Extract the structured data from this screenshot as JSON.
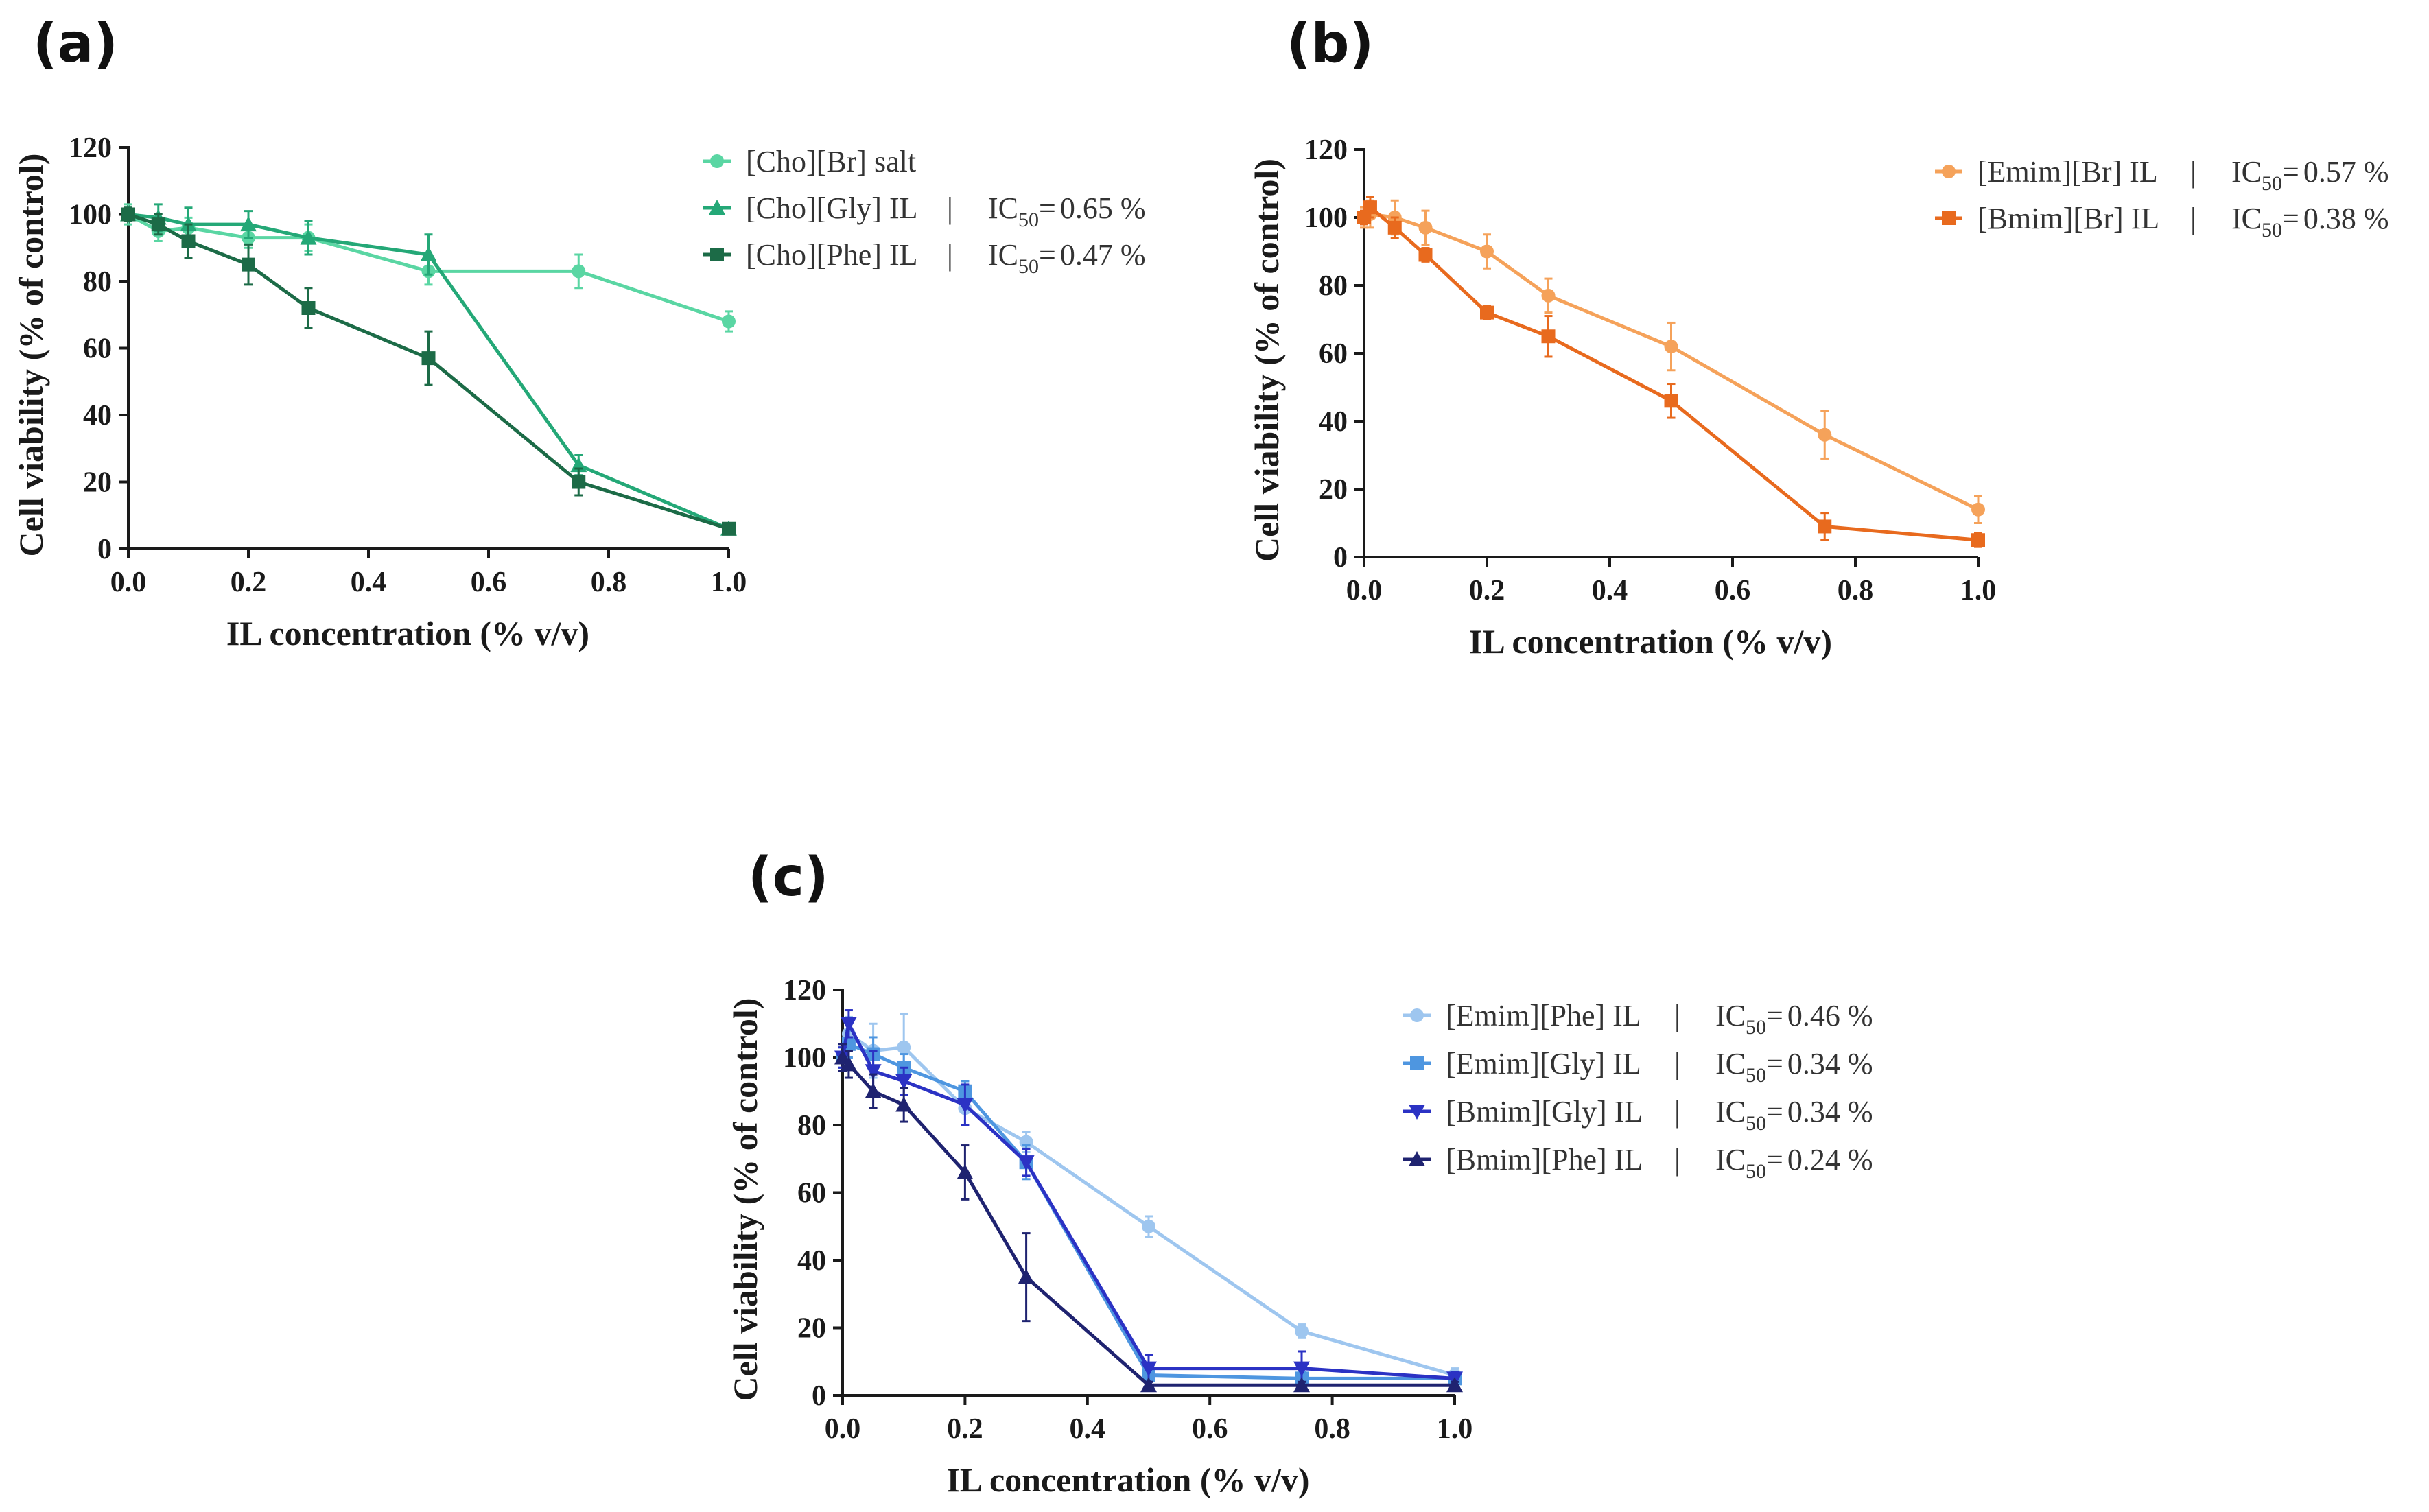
{
  "chart_data": [
    {
      "panel_label": "(a)",
      "type": "line",
      "xlabel": "IL concentration (% v/v)",
      "ylabel": "Cell viability (% of control)",
      "xlim": [
        0,
        1.0
      ],
      "ylim": [
        0,
        120
      ],
      "xticks": [
        "0.0",
        "0.2",
        "0.4",
        "0.6",
        "0.8",
        "1.0"
      ],
      "yticks": [
        "0",
        "20",
        "40",
        "60",
        "80",
        "100",
        "120"
      ],
      "legend_position": "top-right",
      "series": [
        {
          "name": "[Cho][Br] salt",
          "ic50": "",
          "color": "#5ad6a3",
          "marker": "circle",
          "x": [
            0,
            0.05,
            0.1,
            0.2,
            0.3,
            0.5,
            0.75,
            1.0
          ],
          "y": [
            100,
            95,
            96,
            93,
            93,
            83,
            83,
            68
          ],
          "err": [
            3,
            3,
            3,
            3,
            4,
            4,
            5,
            3
          ]
        },
        {
          "name": "[Cho][Gly] IL",
          "ic50": "0.65 %",
          "color": "#24a877",
          "marker": "triangle",
          "x": [
            0,
            0.05,
            0.1,
            0.2,
            0.3,
            0.5,
            0.75,
            1.0
          ],
          "y": [
            100,
            99,
            97,
            97,
            93,
            88,
            25,
            6
          ],
          "err": [
            2,
            4,
            5,
            4,
            5,
            6,
            3,
            1
          ]
        },
        {
          "name": "[Cho][Phe] IL",
          "ic50": "0.47 %",
          "color": "#1c6b47",
          "marker": "square",
          "x": [
            0,
            0.05,
            0.1,
            0.2,
            0.3,
            0.5,
            0.75,
            1.0
          ],
          "y": [
            100,
            97,
            92,
            85,
            72,
            57,
            20,
            6
          ],
          "err": [
            2,
            3,
            5,
            6,
            6,
            8,
            4,
            1
          ]
        }
      ]
    },
    {
      "panel_label": "(b)",
      "type": "line",
      "xlabel": "IL concentration (% v/v)",
      "ylabel": "Cell viability (% of control)",
      "xlim": [
        0,
        1.0
      ],
      "ylim": [
        0,
        120
      ],
      "xticks": [
        "0.0",
        "0.2",
        "0.4",
        "0.6",
        "0.8",
        "1.0"
      ],
      "yticks": [
        "0",
        "20",
        "40",
        "60",
        "80",
        "100",
        "120"
      ],
      "legend_position": "top-right",
      "series": [
        {
          "name": "[Emim][Br] IL",
          "ic50": "0.57 %",
          "color": "#f5a25a",
          "marker": "circle",
          "x": [
            0,
            0.01,
            0.05,
            0.1,
            0.2,
            0.3,
            0.5,
            0.75,
            1.0
          ],
          "y": [
            100,
            101,
            100,
            97,
            90,
            77,
            62,
            36,
            14
          ],
          "err": [
            3,
            4,
            5,
            5,
            5,
            5,
            7,
            7,
            4
          ]
        },
        {
          "name": "[Bmim][Br] IL",
          "ic50": "0.38 %",
          "color": "#e86a1e",
          "marker": "square",
          "x": [
            0,
            0.01,
            0.05,
            0.1,
            0.2,
            0.3,
            0.5,
            0.75,
            1.0
          ],
          "y": [
            100,
            103,
            97,
            89,
            72,
            65,
            46,
            9,
            5
          ],
          "err": [
            2,
            3,
            3,
            2,
            2,
            6,
            5,
            4,
            2
          ]
        }
      ]
    },
    {
      "panel_label": "(c)",
      "type": "line",
      "xlabel": "IL concentration (% v/v)",
      "ylabel": "Cell viability (% of control)",
      "xlim": [
        0,
        1.0
      ],
      "ylim": [
        0,
        120
      ],
      "xticks": [
        "0.0",
        "0.2",
        "0.4",
        "0.6",
        "0.8",
        "1.0"
      ],
      "yticks": [
        "0",
        "20",
        "40",
        "60",
        "80",
        "100",
        "120"
      ],
      "legend_position": "top-right",
      "series": [
        {
          "name": "[Emim][Phe] IL",
          "ic50": "0.46 %",
          "color": "#9ec6ef",
          "marker": "circle",
          "x": [
            0,
            0.01,
            0.05,
            0.1,
            0.2,
            0.3,
            0.5,
            0.75,
            1.0
          ],
          "y": [
            100,
            107,
            102,
            103,
            85,
            75,
            50,
            19,
            6
          ],
          "err": [
            3,
            5,
            8,
            10,
            5,
            3,
            3,
            2,
            2
          ]
        },
        {
          "name": "[Emim][Gly] IL",
          "ic50": "0.34 %",
          "color": "#4e96e0",
          "marker": "square",
          "x": [
            0,
            0.01,
            0.05,
            0.1,
            0.2,
            0.3,
            0.5,
            0.75,
            1.0
          ],
          "y": [
            100,
            104,
            101,
            97,
            90,
            69,
            6,
            5,
            5
          ],
          "err": [
            3,
            4,
            5,
            4,
            3,
            5,
            3,
            2,
            2
          ]
        },
        {
          "name": "[Bmim][Gly] IL",
          "ic50": "0.34 %",
          "color": "#2b32c4",
          "marker": "triangle-down",
          "x": [
            0,
            0.01,
            0.05,
            0.1,
            0.2,
            0.3,
            0.5,
            0.75,
            1.0
          ],
          "y": [
            100,
            110,
            96,
            93,
            86,
            69,
            8,
            8,
            5
          ],
          "err": [
            3,
            4,
            6,
            4,
            6,
            4,
            4,
            5,
            2
          ]
        },
        {
          "name": "[Bmim][Phe] IL",
          "ic50": "0.24 %",
          "color": "#1f2370",
          "marker": "triangle",
          "x": [
            0,
            0.01,
            0.05,
            0.1,
            0.2,
            0.3,
            0.5,
            0.75,
            1.0
          ],
          "y": [
            100,
            98,
            90,
            86,
            66,
            35,
            3,
            3,
            3
          ],
          "err": [
            4,
            4,
            5,
            5,
            8,
            13,
            1,
            1,
            1
          ]
        }
      ]
    }
  ],
  "legend": {
    "ic50_prefix": "IC",
    "ic50_subscript": "50",
    "ic50_equals": "=",
    "separator": "|"
  }
}
